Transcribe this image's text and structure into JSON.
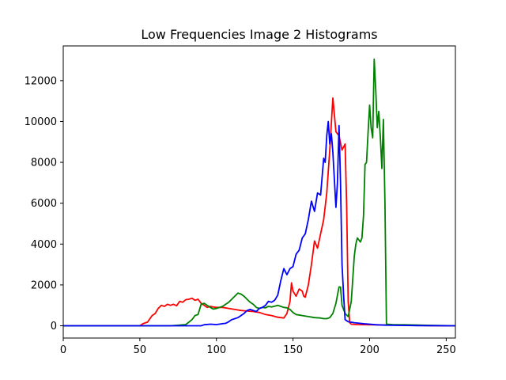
{
  "chart_data": {
    "type": "line",
    "title": "Low Frequencies Image 2 Histograms",
    "xlabel": "",
    "ylabel": "",
    "xlim": [
      0,
      256
    ],
    "ylim": [
      -600,
      13700
    ],
    "x_ticks": [
      0,
      50,
      100,
      150,
      200,
      250
    ],
    "y_ticks": [
      0,
      2000,
      4000,
      6000,
      8000,
      10000,
      12000
    ],
    "grid": false,
    "legend": "none",
    "series": [
      {
        "color": "#ff0000",
        "points": [
          [
            0,
            0
          ],
          [
            50,
            0
          ],
          [
            52,
            100
          ],
          [
            55,
            180
          ],
          [
            58,
            500
          ],
          [
            60,
            600
          ],
          [
            62,
            850
          ],
          [
            64,
            1000
          ],
          [
            66,
            950
          ],
          [
            68,
            1050
          ],
          [
            70,
            1000
          ],
          [
            72,
            1050
          ],
          [
            74,
            980
          ],
          [
            76,
            1200
          ],
          [
            78,
            1150
          ],
          [
            80,
            1280
          ],
          [
            82,
            1300
          ],
          [
            84,
            1350
          ],
          [
            86,
            1250
          ],
          [
            88,
            1300
          ],
          [
            90,
            1100
          ],
          [
            92,
            1000
          ],
          [
            94,
            900
          ],
          [
            96,
            950
          ],
          [
            98,
            920
          ],
          [
            100,
            900
          ],
          [
            104,
            900
          ],
          [
            108,
            850
          ],
          [
            112,
            800
          ],
          [
            116,
            750
          ],
          [
            120,
            720
          ],
          [
            124,
            700
          ],
          [
            128,
            650
          ],
          [
            132,
            550
          ],
          [
            136,
            500
          ],
          [
            140,
            420
          ],
          [
            144,
            380
          ],
          [
            146,
            600
          ],
          [
            148,
            1200
          ],
          [
            149,
            2100
          ],
          [
            150,
            1700
          ],
          [
            152,
            1450
          ],
          [
            154,
            1800
          ],
          [
            156,
            1700
          ],
          [
            157,
            1450
          ],
          [
            158,
            1400
          ],
          [
            160,
            2000
          ],
          [
            162,
            3000
          ],
          [
            164,
            4150
          ],
          [
            166,
            3800
          ],
          [
            168,
            4500
          ],
          [
            170,
            5200
          ],
          [
            172,
            6500
          ],
          [
            174,
            8600
          ],
          [
            176,
            11150
          ],
          [
            178,
            9500
          ],
          [
            180,
            9300
          ],
          [
            182,
            8600
          ],
          [
            184,
            8900
          ],
          [
            185,
            6000
          ],
          [
            186,
            1200
          ],
          [
            187,
            150
          ],
          [
            188,
            80
          ],
          [
            192,
            60
          ],
          [
            200,
            50
          ],
          [
            210,
            40
          ],
          [
            220,
            30
          ],
          [
            230,
            20
          ],
          [
            240,
            10
          ],
          [
            256,
            0
          ]
        ]
      },
      {
        "color": "#008000",
        "points": [
          [
            0,
            0
          ],
          [
            70,
            0
          ],
          [
            80,
            60
          ],
          [
            84,
            300
          ],
          [
            86,
            500
          ],
          [
            88,
            550
          ],
          [
            90,
            1050
          ],
          [
            92,
            1100
          ],
          [
            94,
            1000
          ],
          [
            96,
            900
          ],
          [
            98,
            820
          ],
          [
            100,
            850
          ],
          [
            102,
            900
          ],
          [
            104,
            950
          ],
          [
            106,
            1050
          ],
          [
            108,
            1150
          ],
          [
            110,
            1300
          ],
          [
            112,
            1450
          ],
          [
            114,
            1600
          ],
          [
            116,
            1550
          ],
          [
            118,
            1450
          ],
          [
            120,
            1300
          ],
          [
            122,
            1150
          ],
          [
            124,
            1050
          ],
          [
            126,
            900
          ],
          [
            128,
            850
          ],
          [
            130,
            900
          ],
          [
            132,
            880
          ],
          [
            134,
            950
          ],
          [
            136,
            920
          ],
          [
            138,
            960
          ],
          [
            140,
            1000
          ],
          [
            142,
            950
          ],
          [
            144,
            900
          ],
          [
            146,
            880
          ],
          [
            148,
            800
          ],
          [
            150,
            650
          ],
          [
            152,
            550
          ],
          [
            156,
            500
          ],
          [
            160,
            450
          ],
          [
            164,
            400
          ],
          [
            168,
            380
          ],
          [
            170,
            350
          ],
          [
            172,
            350
          ],
          [
            174,
            400
          ],
          [
            176,
            600
          ],
          [
            178,
            1100
          ],
          [
            180,
            1900
          ],
          [
            181,
            1900
          ],
          [
            182,
            1000
          ],
          [
            184,
            600
          ],
          [
            186,
            450
          ],
          [
            188,
            1200
          ],
          [
            190,
            3400
          ],
          [
            191,
            4000
          ],
          [
            192,
            4300
          ],
          [
            194,
            4100
          ],
          [
            195,
            4300
          ],
          [
            196,
            5400
          ],
          [
            197,
            7900
          ],
          [
            198,
            8000
          ],
          [
            199,
            9500
          ],
          [
            200,
            10800
          ],
          [
            201,
            9700
          ],
          [
            202,
            9200
          ],
          [
            203,
            13050
          ],
          [
            204,
            11500
          ],
          [
            205,
            9700
          ],
          [
            206,
            10500
          ],
          [
            207,
            9200
          ],
          [
            208,
            7700
          ],
          [
            209,
            10100
          ],
          [
            210,
            6000
          ],
          [
            211,
            80
          ],
          [
            215,
            60
          ],
          [
            230,
            40
          ],
          [
            240,
            20
          ],
          [
            256,
            0
          ]
        ]
      },
      {
        "color": "#0000ff",
        "points": [
          [
            0,
            0
          ],
          [
            90,
            0
          ],
          [
            92,
            50
          ],
          [
            96,
            80
          ],
          [
            100,
            60
          ],
          [
            104,
            100
          ],
          [
            106,
            120
          ],
          [
            108,
            200
          ],
          [
            110,
            300
          ],
          [
            112,
            350
          ],
          [
            114,
            400
          ],
          [
            116,
            500
          ],
          [
            118,
            600
          ],
          [
            120,
            750
          ],
          [
            122,
            800
          ],
          [
            124,
            750
          ],
          [
            126,
            700
          ],
          [
            128,
            850
          ],
          [
            130,
            900
          ],
          [
            132,
            1000
          ],
          [
            134,
            1200
          ],
          [
            136,
            1150
          ],
          [
            138,
            1250
          ],
          [
            140,
            1500
          ],
          [
            142,
            2200
          ],
          [
            144,
            2800
          ],
          [
            146,
            2500
          ],
          [
            148,
            2800
          ],
          [
            150,
            2900
          ],
          [
            152,
            3500
          ],
          [
            154,
            3700
          ],
          [
            156,
            4300
          ],
          [
            158,
            4500
          ],
          [
            160,
            5200
          ],
          [
            162,
            6100
          ],
          [
            164,
            5600
          ],
          [
            166,
            6500
          ],
          [
            168,
            6400
          ],
          [
            170,
            8200
          ],
          [
            171,
            8000
          ],
          [
            172,
            9300
          ],
          [
            173,
            10000
          ],
          [
            174,
            8900
          ],
          [
            175,
            9400
          ],
          [
            176,
            8500
          ],
          [
            178,
            5800
          ],
          [
            179,
            7000
          ],
          [
            180,
            9800
          ],
          [
            181,
            7000
          ],
          [
            182,
            3000
          ],
          [
            183,
            1500
          ],
          [
            184,
            300
          ],
          [
            186,
            200
          ],
          [
            190,
            150
          ],
          [
            196,
            100
          ],
          [
            200,
            80
          ],
          [
            204,
            50
          ],
          [
            210,
            30
          ],
          [
            220,
            20
          ],
          [
            232,
            10
          ],
          [
            256,
            0
          ]
        ]
      }
    ]
  }
}
